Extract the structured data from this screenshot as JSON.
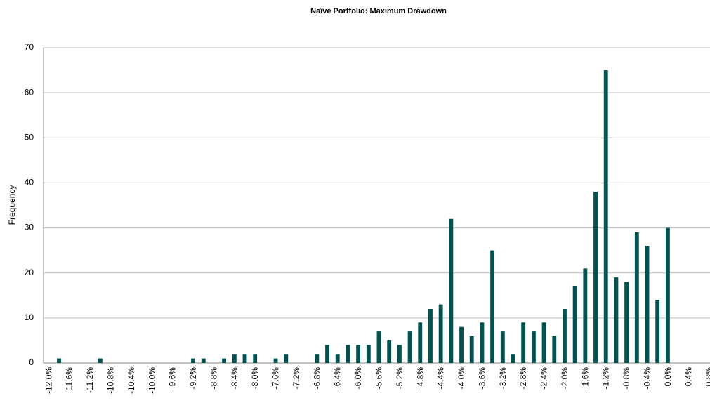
{
  "chart_data": {
    "type": "bar",
    "title": "Naïve Portfolio: Maximum Drawdown",
    "y_label": "Frequency",
    "categories": [
      "-12.0%",
      null,
      "-11.6%",
      null,
      "-11.2%",
      null,
      "-10.8%",
      null,
      "-10.4%",
      null,
      "-10.0%",
      null,
      "-9.6%",
      null,
      "-9.2%",
      null,
      "-8.8%",
      null,
      "-8.4%",
      null,
      "-8.0%",
      null,
      "-7.6%",
      null,
      "-7.2%",
      null,
      "-6.8%",
      null,
      "-6.4%",
      null,
      "-6.0%",
      null,
      "-5.6%",
      null,
      "-5.2%",
      null,
      "-4.8%",
      null,
      "-4.4%",
      null,
      "-4.0%",
      null,
      "-3.6%",
      null,
      "-3.2%",
      null,
      "-2.8%",
      null,
      "-2.4%",
      null,
      "-2.0%",
      null,
      "-1.6%",
      null,
      "-1.2%",
      null,
      "-0.8%",
      null,
      "-0.4%",
      null,
      "0.0%",
      null,
      "0.4%",
      null,
      "0.8%"
    ],
    "values": [
      0,
      1,
      0,
      0,
      0,
      1,
      0,
      0,
      0,
      0,
      0,
      0,
      0,
      0,
      1,
      1,
      0,
      1,
      2,
      2,
      2,
      0,
      1,
      2,
      0,
      0,
      2,
      4,
      2,
      4,
      4,
      4,
      7,
      5,
      4,
      7,
      9,
      12,
      13,
      32,
      8,
      6,
      9,
      25,
      7,
      2,
      9,
      7,
      9,
      6,
      12,
      17,
      21,
      38,
      65,
      19,
      18,
      29,
      26,
      14,
      30,
      0,
      0,
      0,
      0
    ],
    "color": "#03524f",
    "ylim": [
      0,
      70
    ],
    "yticks": [
      0,
      10,
      20,
      30,
      40,
      50,
      60,
      70
    ],
    "grid": true
  }
}
